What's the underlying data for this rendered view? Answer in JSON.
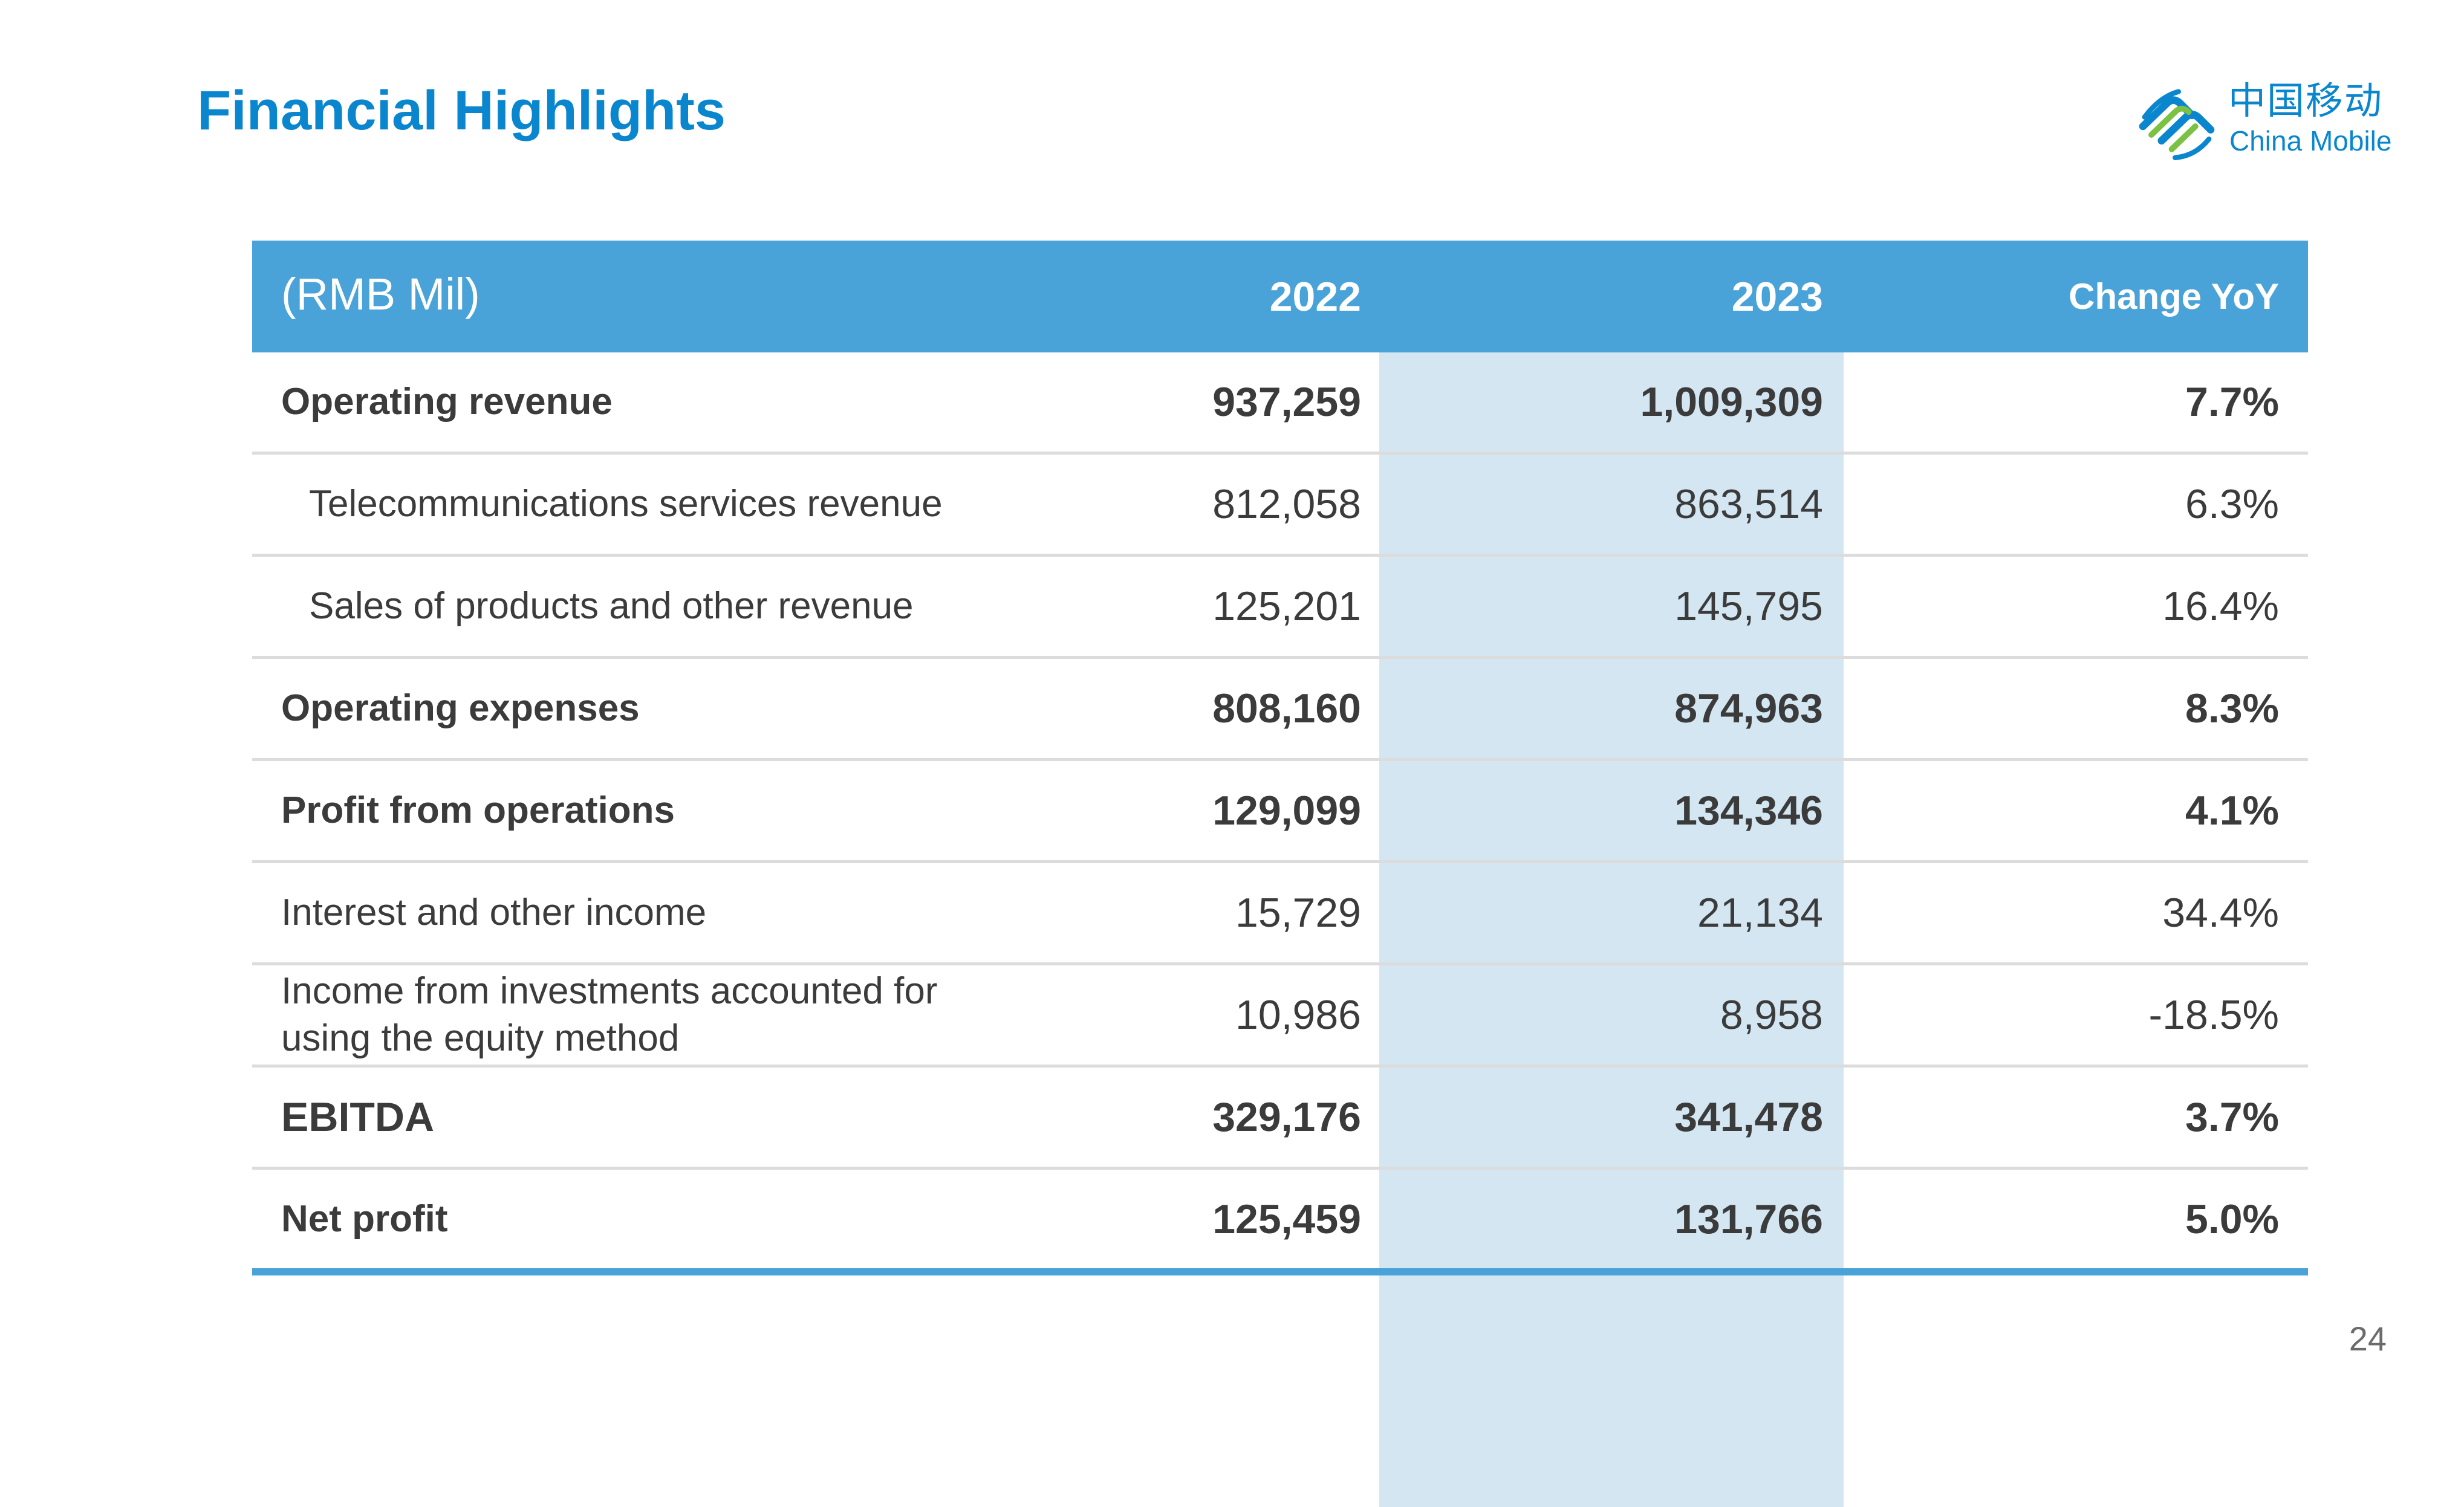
{
  "title": "Financial Highlights",
  "logo": {
    "name_cn": "中国移动",
    "name_en": "China Mobile",
    "icon": "china-mobile-logo-icon",
    "color": "#0a86cf"
  },
  "colors": {
    "accent": "#0a86cf",
    "header_bg": "#4aa3d8",
    "highlight_col": "#d3e6f2"
  },
  "table": {
    "header": {
      "unit": "(RMB Mil)",
      "year1": "2022",
      "year2": "2023",
      "change": "Change YoY"
    },
    "rows": [
      {
        "label": "Operating revenue",
        "v2022": "937,259",
        "v2023": "1,009,309",
        "change": "7.7%"
      },
      {
        "label": "Telecommunications services revenue",
        "v2022": "812,058",
        "v2023": "863,514",
        "change": "6.3%"
      },
      {
        "label": "Sales of products and other revenue",
        "v2022": "125,201",
        "v2023": "145,795",
        "change": "16.4%"
      },
      {
        "label": "Operating expenses",
        "v2022": "808,160",
        "v2023": "874,963",
        "change": "8.3%"
      },
      {
        "label": "Profit from operations",
        "v2022": "129,099",
        "v2023": "134,346",
        "change": "4.1%"
      },
      {
        "label": "Interest and other income",
        "v2022": "15,729",
        "v2023": "21,134",
        "change": "34.4%"
      },
      {
        "label": "Income from investments accounted for using the equity method",
        "v2022": "10,986",
        "v2023": "8,958",
        "change": "-18.5%"
      },
      {
        "label": "EBITDA",
        "v2022": "329,176",
        "v2023": "341,478",
        "change": "3.7%"
      },
      {
        "label": "Net profit",
        "v2022": "125,459",
        "v2023": "131,766",
        "change": "5.0%"
      }
    ]
  },
  "page_number": "24"
}
